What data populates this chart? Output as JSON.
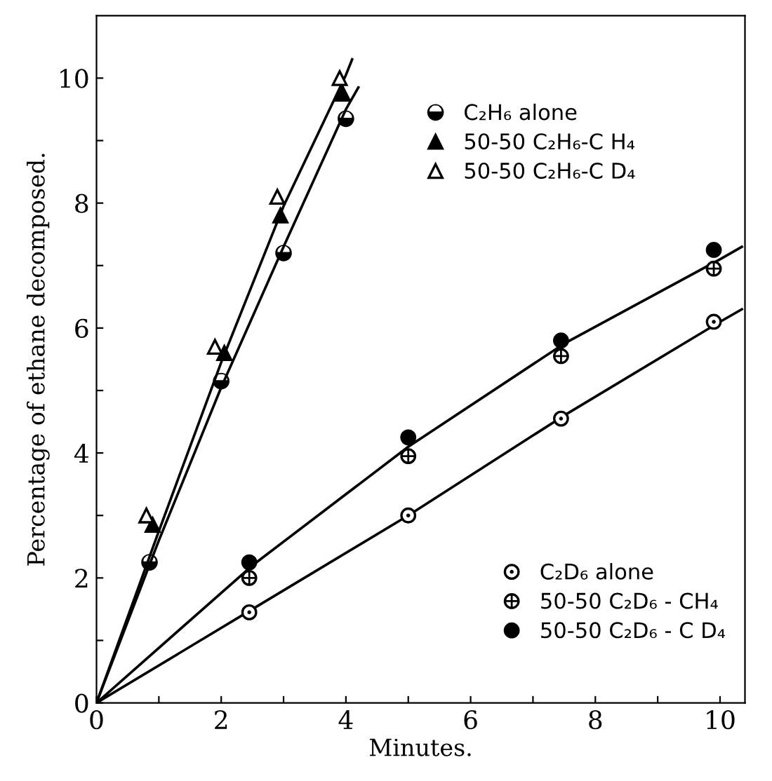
{
  "chart_data": {
    "type": "scatter",
    "xlabel": "Minutes.",
    "ylabel": "Percentage of ethane decomposed.",
    "xlim": [
      0,
      10.4
    ],
    "ylim": [
      0,
      11
    ],
    "xticks": [
      0,
      {
        "value": 1,
        "label": null
      },
      2,
      {
        "value": 3,
        "label": null
      },
      4,
      {
        "value": 5,
        "label": null
      },
      6,
      {
        "value": 7,
        "label": null
      },
      8,
      {
        "value": 9,
        "label": null
      },
      10
    ],
    "yticks": [
      0,
      {
        "value": 1,
        "label": null
      },
      2,
      {
        "value": 3,
        "label": null
      },
      4,
      {
        "value": 5,
        "label": null
      },
      6,
      {
        "value": 7,
        "label": null
      },
      8,
      {
        "value": 9,
        "label": null
      },
      10
    ],
    "grid": false,
    "legend": "right",
    "series": [
      {
        "name": "C₂H₆ alone",
        "color": "#000000",
        "marker": "circle",
        "x": [
          0.85,
          2,
          3,
          4
        ],
        "values": [
          2.25,
          5.15,
          7.2,
          9.35
        ]
      },
      {
        "name": "50-50 C₂H₆-C H₄",
        "color": "#000000",
        "marker": "triangle",
        "x": [
          0.9,
          2.05,
          2.95,
          3.95
        ],
        "values": [
          2.85,
          5.6,
          7.8,
          9.75
        ]
      },
      {
        "name": "50-50 C₂H₆-C D₄",
        "color": "#000000",
        "marker": "triangle",
        "x": [
          0.8,
          1.9,
          2.9,
          3.9
        ],
        "values": [
          3.0,
          5.7,
          8.1,
          10.0
        ]
      },
      {
        "name": "C₂D₆ alone",
        "color": "#000000",
        "marker": "circle",
        "x": [
          2.45,
          5,
          7.45,
          9.9
        ],
        "values": [
          1.45,
          3.0,
          4.55,
          6.1
        ]
      },
      {
        "name": "50-50 C₂D₆ - CH₄",
        "color": "#000000",
        "marker": "circle",
        "x": [
          2.45,
          5,
          7.45,
          9.9
        ],
        "values": [
          2.0,
          3.95,
          5.55,
          6.95
        ]
      },
      {
        "name": "50-50 C₂D₆ - C D₄",
        "color": "#000000",
        "marker": "circle",
        "x": [
          2.45,
          5,
          7.45,
          9.9
        ],
        "values": [
          2.25,
          4.25,
          5.8,
          7.25
        ]
      },
      {
        "type": "line",
        "color": "#000000",
        "marker": "none",
        "line_style": "solid",
        "x": [
          0,
          1,
          2,
          3,
          4,
          4.1
        ],
        "values": [
          0,
          2.75,
          5.45,
          7.95,
          10.05,
          10.3
        ]
      },
      {
        "type": "line",
        "color": "#000000",
        "marker": "none",
        "line_style": "solid",
        "x": [
          0,
          1,
          2,
          3,
          4,
          4.2
        ],
        "values": [
          0,
          2.6,
          5.05,
          7.3,
          9.5,
          9.85
        ]
      },
      {
        "type": "line",
        "color": "#000000",
        "marker": "none",
        "line_style": "solid",
        "x": [
          0,
          2.5,
          5,
          7.5,
          10,
          10.35
        ],
        "values": [
          0,
          2.2,
          4.1,
          5.75,
          7.1,
          7.3
        ]
      },
      {
        "type": "line",
        "color": "#000000",
        "marker": "none",
        "line_style": "solid",
        "x": [
          0,
          2.5,
          5,
          7.5,
          10,
          10.35
        ],
        "values": [
          0,
          1.5,
          3.0,
          4.6,
          6.1,
          6.3
        ]
      }
    ]
  }
}
